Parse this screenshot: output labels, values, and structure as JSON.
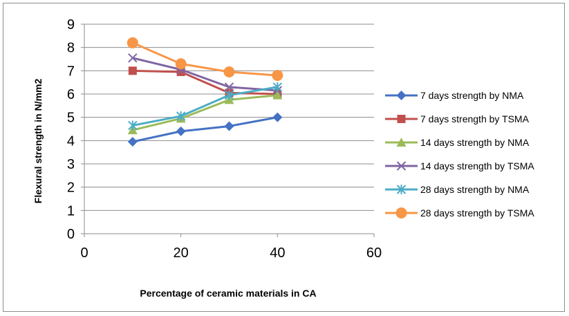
{
  "chart_data": {
    "type": "line",
    "title": "",
    "xlabel": "Percentage of ceramic materials in CA",
    "ylabel": "Flexural strength in N/mm2",
    "xlim": [
      0,
      60
    ],
    "ylim": [
      0,
      9
    ],
    "x_ticks": [
      "0",
      "20",
      "40",
      "60"
    ],
    "y_ticks": [
      "0",
      "1",
      "2",
      "3",
      "4",
      "5",
      "6",
      "7",
      "8",
      "9"
    ],
    "grid": "horizontal",
    "legend_position": "right",
    "x": [
      10,
      20,
      30,
      40
    ],
    "series": [
      {
        "name": "7 days strength by NMA",
        "values": [
          3.95,
          4.4,
          4.62,
          5.0
        ],
        "color": "#4472C4",
        "marker": "diamond"
      },
      {
        "name": "7 days  strength by TSMA",
        "values": [
          7.0,
          6.95,
          6.05,
          6.0
        ],
        "color": "#C0504D",
        "marker": "square"
      },
      {
        "name": "14 days  strength by NMA",
        "values": [
          4.45,
          4.95,
          5.75,
          5.95
        ],
        "color": "#9BBB59",
        "marker": "triangle"
      },
      {
        "name": "14 days strength by  TSMA",
        "values": [
          7.55,
          7.05,
          6.3,
          6.15
        ],
        "color": "#8064A2",
        "marker": "x"
      },
      {
        "name": "28 days  strength by NMA",
        "values": [
          4.65,
          5.05,
          5.95,
          6.3
        ],
        "color": "#4BACC6",
        "marker": "star"
      },
      {
        "name": "28 days strength by TSMA",
        "values": [
          8.2,
          7.3,
          6.95,
          6.8
        ],
        "color": "#F79646",
        "marker": "circle"
      }
    ]
  }
}
